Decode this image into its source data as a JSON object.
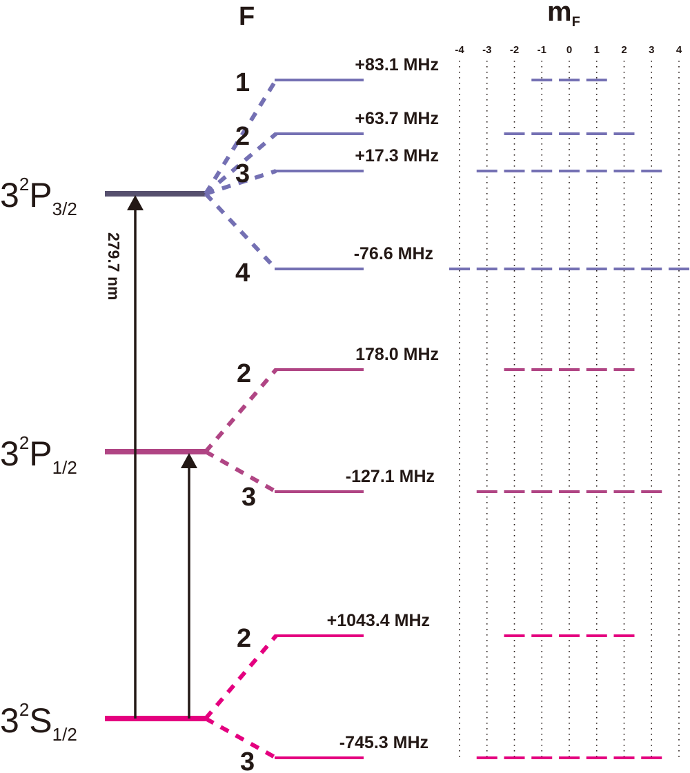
{
  "headers": {
    "F": "F",
    "mF_main": "m",
    "mF_sub": "F"
  },
  "mF_ticks": [
    "-4",
    "-3",
    "-2",
    "-1",
    "0",
    "1",
    "2",
    "3",
    "4"
  ],
  "colors": {
    "p32_main": "#56506e",
    "p32": "#7470b3",
    "p12": "#b04584",
    "s12": "#e4007f",
    "arrow": "#231815"
  },
  "terms": [
    {
      "id": "p32",
      "n": "3",
      "sup": "2",
      "L": "P",
      "sub": "3/2",
      "color": "p32_main"
    },
    {
      "id": "p12",
      "n": "3",
      "sup": "2",
      "L": "P",
      "sub": "1/2",
      "color": "p12"
    },
    {
      "id": "s12",
      "n": "3",
      "sup": "2",
      "L": "S",
      "sub": "1/2",
      "color": "s12"
    }
  ],
  "hyperfine": [
    {
      "term": "p32",
      "F": "1",
      "shift": "+83.1 MHz",
      "color": "p32"
    },
    {
      "term": "p32",
      "F": "2",
      "shift": "+63.7 MHz",
      "color": "p32"
    },
    {
      "term": "p32",
      "F": "3",
      "shift": "+17.3 MHz",
      "color": "p32"
    },
    {
      "term": "p32",
      "F": "4",
      "shift": "-76.6 MHz",
      "color": "p32"
    },
    {
      "term": "p12",
      "F": "2",
      "shift": "178.0 MHz",
      "color": "p12"
    },
    {
      "term": "p12",
      "F": "3",
      "shift": "-127.1 MHz",
      "color": "p12"
    },
    {
      "term": "s12",
      "F": "2",
      "shift": "+1043.4 MHz",
      "color": "s12"
    },
    {
      "term": "s12",
      "F": "3",
      "shift": "-745.3 MHz",
      "color": "s12"
    }
  ],
  "transitions": [
    {
      "from": "s12",
      "to": "p32",
      "label": "279.7 nm"
    },
    {
      "from": "s12",
      "to": "p12",
      "label": ""
    }
  ]
}
